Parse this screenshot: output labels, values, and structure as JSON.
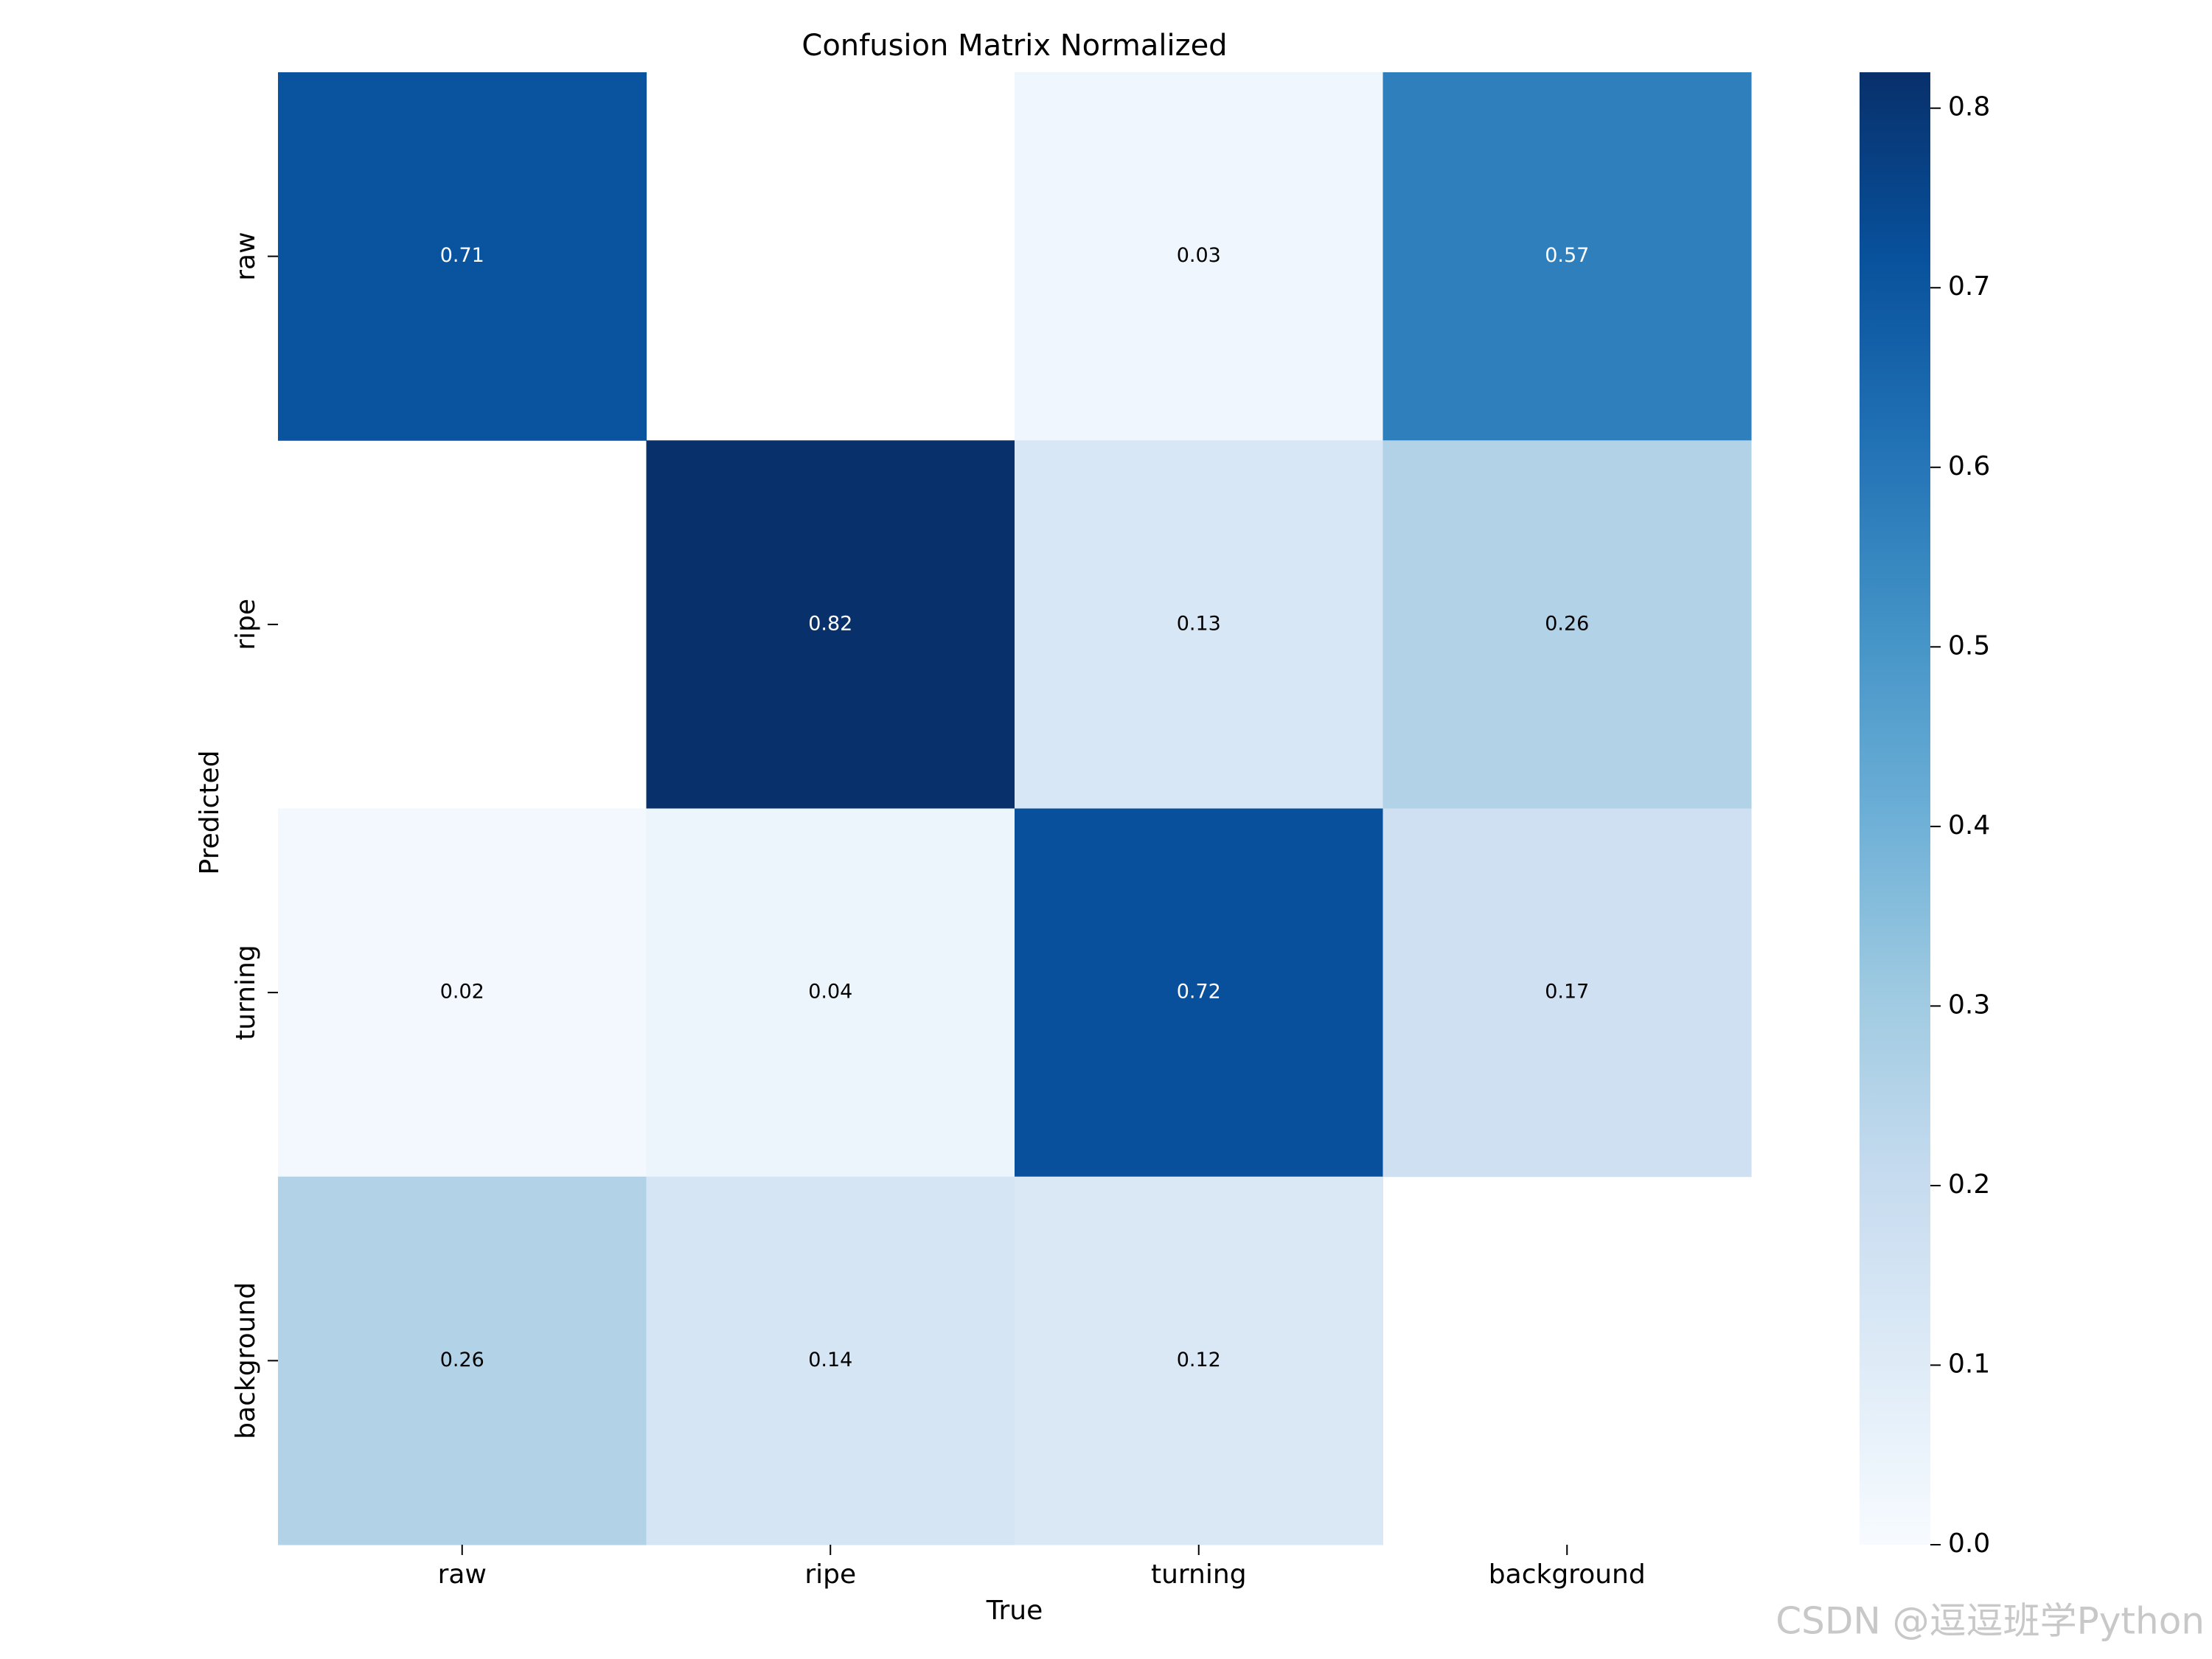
{
  "chart_data": {
    "type": "heatmap",
    "title": "Confusion Matrix Normalized",
    "x_label": "True",
    "y_label": "Predicted",
    "xcategories": [
      "raw",
      "ripe",
      "turning",
      "background"
    ],
    "ycategories": [
      "raw",
      "ripe",
      "turning",
      "background"
    ],
    "values": [
      [
        0.71,
        null,
        0.03,
        0.57
      ],
      [
        null,
        0.82,
        0.13,
        0.26
      ],
      [
        0.02,
        0.04,
        0.72,
        0.17
      ],
      [
        0.26,
        0.14,
        0.12,
        null
      ]
    ],
    "colorscale": [
      "#f7fbff",
      "#deebf7",
      "#c6dbef",
      "#9ecae1",
      "#6baed6",
      "#4292c6",
      "#2171b5",
      "#08519c",
      "#08306b"
    ],
    "clim": [
      0,
      0.82
    ],
    "cticks": [
      {
        "value": 0,
        "label": "0.0"
      },
      0.1,
      0.2,
      0.3,
      0.4,
      0.5,
      0.6,
      0.7,
      0.8
    ],
    "watermark": "CSDN @逗逗班学Python"
  }
}
